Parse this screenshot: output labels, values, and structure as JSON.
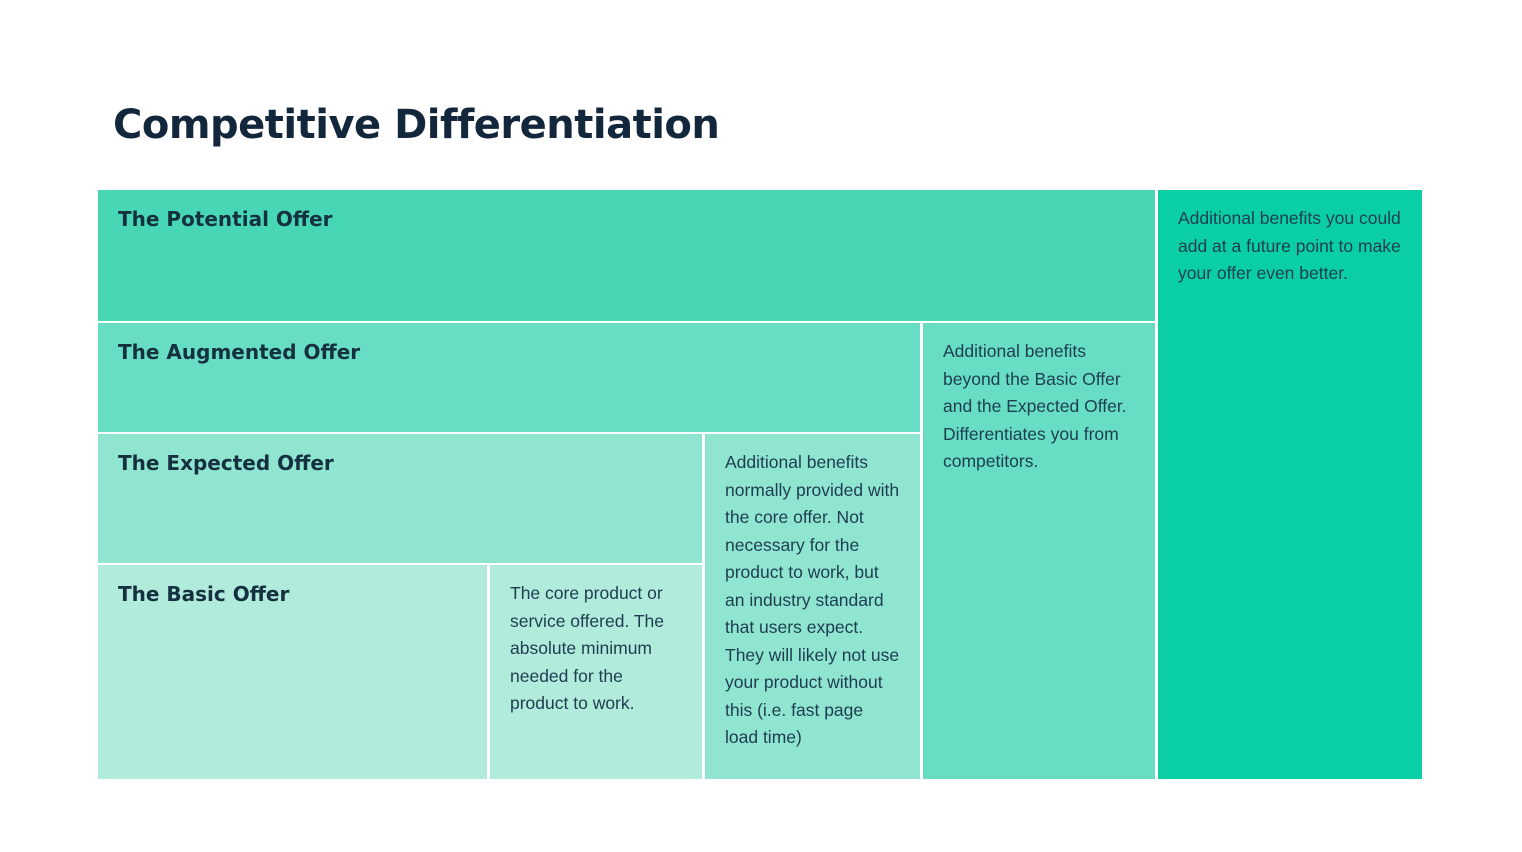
{
  "title": "Competitive Differentiation",
  "colors": {
    "background": "#ffffff",
    "title_text": "#13273c",
    "heading_text": "#15303f",
    "body_text": "#1e3d50",
    "potential_band": "#48d7b5",
    "augmented_band": "#67dec3",
    "expected_band": "#8fe5d0",
    "basic_band": "#b0ebdc",
    "future_column": "#0acfa5"
  },
  "blocks": {
    "potential": {
      "label": "The Potential Offer",
      "description": "Additional benefits you could add at a future point to make your offer even better."
    },
    "augmented": {
      "label": "The Augmented Offer",
      "description": "Additional benefits beyond the Basic Offer and the Expected Offer. Differentiates you from competitors."
    },
    "expected": {
      "label": "The Expected Offer",
      "description": "Additional benefits normally provided with the core offer. Not necessary for the product to work, but an industry standard that users expect. They will likely not use your product without this (i.e. fast page load time)"
    },
    "basic": {
      "label": "The Basic Offer",
      "description": "The core product or service offered. The absolute minimum needed for the product to work."
    }
  }
}
